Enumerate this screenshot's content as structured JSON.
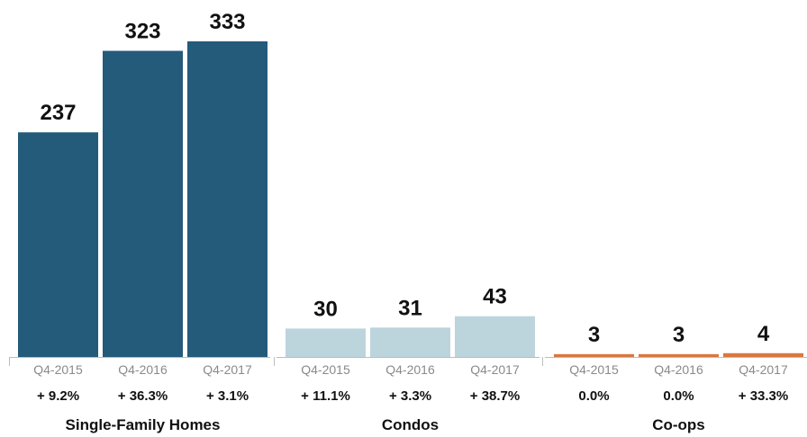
{
  "chart_data": {
    "type": "bar",
    "title": "",
    "xlabel": "",
    "ylabel": "",
    "ylim": [
      0,
      360
    ],
    "grid": false,
    "legend": "none",
    "groups": [
      {
        "name": "Single-Family Homes",
        "color": "#245a7a",
        "categories": [
          "Q4-2015",
          "Q4-2016",
          "Q4-2017"
        ],
        "values": [
          237,
          323,
          333
        ],
        "changes": [
          "+ 9.2%",
          "+ 36.3%",
          "+ 3.1%"
        ]
      },
      {
        "name": "Condos",
        "color": "#bcd4dc",
        "categories": [
          "Q4-2015",
          "Q4-2016",
          "Q4-2017"
        ],
        "values": [
          30,
          31,
          43
        ],
        "changes": [
          "+ 11.1%",
          "+ 3.3%",
          "+ 38.7%"
        ]
      },
      {
        "name": "Co-ops",
        "color": "#d9773f",
        "categories": [
          "Q4-2015",
          "Q4-2016",
          "Q4-2017"
        ],
        "values": [
          3,
          3,
          4
        ],
        "changes": [
          "0.0%",
          "0.0%",
          "+ 33.3%"
        ]
      }
    ]
  }
}
